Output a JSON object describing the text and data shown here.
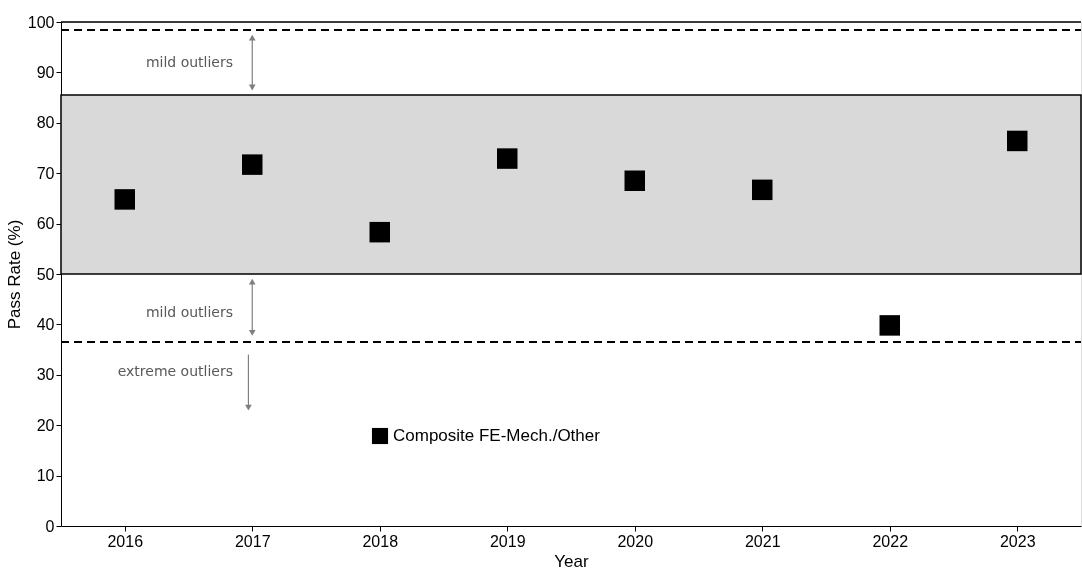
{
  "chart_data": {
    "type": "scatter",
    "xlabel": "Year",
    "ylabel": "Pass Rate (%)",
    "x": [
      2016,
      2017,
      2018,
      2019,
      2020,
      2021,
      2022,
      2023
    ],
    "series": [
      {
        "name": "Composite FE-Mech./Other",
        "color": "#000000",
        "values": [
          64.8,
          71.7,
          58.3,
          72.9,
          68.5,
          66.7,
          39.8,
          76.4
        ]
      }
    ],
    "xlim": [
      2015.5,
      2023.5
    ],
    "xticks": [
      2016,
      2017,
      2018,
      2019,
      2020,
      2021,
      2022,
      2023
    ],
    "ylim": [
      0,
      100
    ],
    "yticks": [
      0,
      10,
      20,
      30,
      40,
      50,
      60,
      70,
      80,
      90,
      100
    ],
    "marker": "square",
    "grid": false,
    "legend": "bottom left",
    "bands": [
      {
        "axis": "y",
        "from": 50,
        "to": 85.5,
        "color": "#d9d9d9"
      }
    ],
    "ref_lines": [
      {
        "axis": "y",
        "value": 98.4,
        "line_style": "dashed",
        "color": "#000000"
      },
      {
        "axis": "y",
        "value": 36.5,
        "line_style": "dashed",
        "color": "#000000"
      }
    ],
    "annotations": [
      "mild outliers",
      "mild outliers",
      "extreme outliers"
    ]
  }
}
